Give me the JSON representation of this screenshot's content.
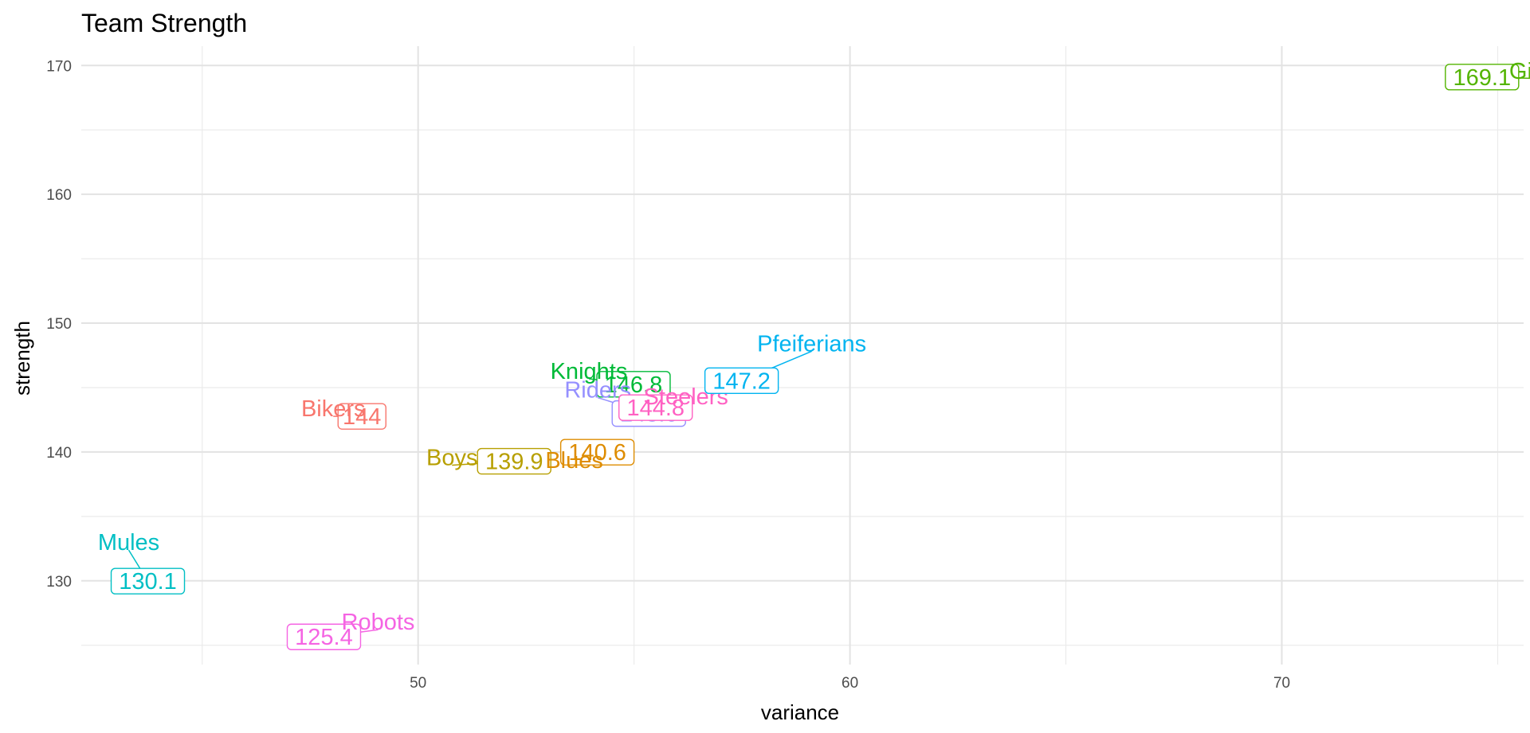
{
  "chart_data": {
    "type": "scatter",
    "title": "Team Strength",
    "xlabel": "variance",
    "ylabel": "strength",
    "xlim": [
      42.2,
      75.6
    ],
    "ylim": [
      123.5,
      171.5
    ],
    "x_major_ticks": [
      50,
      60,
      70
    ],
    "x_minor_ticks": [
      45,
      55,
      65,
      75
    ],
    "y_major_ticks": [
      130,
      140,
      150,
      160,
      170
    ],
    "y_minor_ticks": [
      125,
      135,
      145,
      155,
      165
    ],
    "x_tick_labels": [
      "50",
      "60",
      "70"
    ],
    "y_tick_labels": [
      "130",
      "140",
      "150",
      "160",
      "170"
    ],
    "grid": true,
    "legend": "none",
    "points": [
      {
        "team": "Bikers",
        "variance": 48.7,
        "strength": 144.0,
        "label": "144",
        "color": "#F8766D"
      },
      {
        "team": "Boys",
        "variance": 51.8,
        "strength": 139.9,
        "label": "139.9",
        "color": "#B79F00"
      },
      {
        "team": "Blues",
        "variance": 53.8,
        "strength": 140.6,
        "label": "140.6",
        "color": "#DE8C00"
      },
      {
        "team": "Knights",
        "variance": 54.6,
        "strength": 146.8,
        "label": "146.8",
        "color": "#00BA38"
      },
      {
        "team": "Riders",
        "variance": 54.9,
        "strength": 143.6,
        "label": "143.6",
        "color": "#9590FF"
      },
      {
        "team": "Steelers",
        "variance": 55.5,
        "strength": 144.8,
        "label": "144.8",
        "color": "#FF61C3"
      },
      {
        "team": "Pfeiferians",
        "variance": 58.1,
        "strength": 147.2,
        "label": "147.2",
        "color": "#00B4F0"
      },
      {
        "team": "Giants",
        "variance": 74.6,
        "strength": 169.1,
        "label": "169.1",
        "color": "#53B400"
      },
      {
        "team": "Mules",
        "variance": 42.8,
        "strength": 130.1,
        "label": "130.1",
        "color": "#00BFC4"
      },
      {
        "team": "Robots",
        "variance": 47.8,
        "strength": 125.4,
        "label": "125.4",
        "color": "#F564E3"
      }
    ]
  }
}
